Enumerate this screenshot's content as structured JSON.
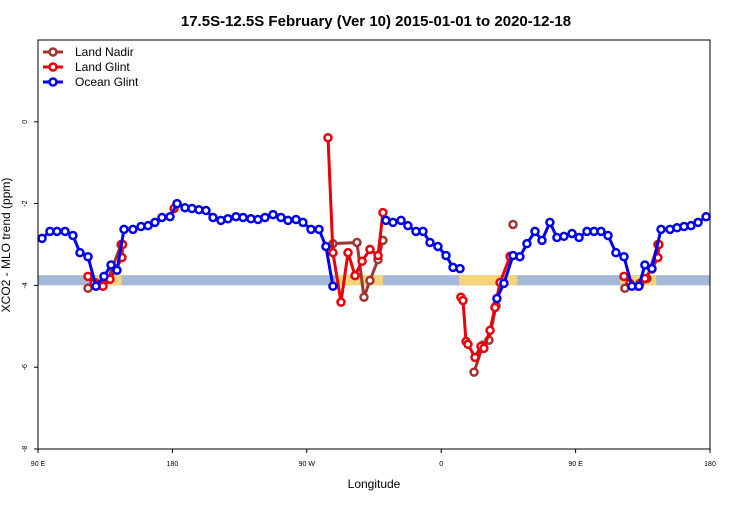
{
  "chart_data": {
    "type": "line",
    "title": "17.5S-12.5S February (Ver 10)   2015-01-01 to 2020-12-18",
    "x_label": "Longitude",
    "y_label": "XCO2 - MLO trend (ppm)",
    "xlim": [
      90,
      540
    ],
    "xticks": [
      {
        "value": 90,
        "label": "90 E"
      },
      {
        "value": 180,
        "label": "180"
      },
      {
        "value": 270,
        "label": "90 W"
      },
      {
        "value": 360,
        "label": "0"
      },
      {
        "value": 450,
        "label": "90 E"
      },
      {
        "value": 540,
        "label": "180"
      }
    ],
    "ylim": [
      -8,
      2
    ],
    "yticks": [
      0,
      -2,
      -4,
      -6,
      -8
    ],
    "legend": "top-left",
    "surface_band": {
      "ylim": [
        -4.0,
        -3.75
      ],
      "ocean_color": "#a4b8d8",
      "land_color": "#f5d37a",
      "land": [
        [
          128,
          146
        ],
        [
          289,
          321
        ],
        [
          372,
          411
        ],
        [
          480,
          504
        ]
      ]
    },
    "series": [
      {
        "name": "Land Nadir",
        "color": "#a0342f",
        "x": [
          123.5,
          128.2,
          136.9,
          145.6,
          200,
          287.5,
          303.6,
          308.3,
          312.3,
          317.7,
          321,
          350,
          382,
          388,
          392,
          396.7,
          402,
          408.1,
          440,
          483,
          493.1,
          497.8,
          505.1
        ],
        "values": [
          -4.07,
          -3.93,
          -3.85,
          -3.0,
          null,
          -2.98,
          -2.95,
          -4.29,
          -3.88,
          -3.37,
          -2.9,
          null,
          -6.12,
          -5.46,
          -5.34,
          -4.5,
          null,
          -2.51,
          null,
          -4.07,
          -3.95,
          -3.83,
          -3.0
        ]
      },
      {
        "name": "Land Glint",
        "color": "#e8000b",
        "x": [
          123.5,
          127.5,
          133.5,
          138.2,
          142.2,
          146.2,
          146.6,
          160,
          181.1,
          230,
          284.2,
          287.5,
          292.9,
          297.6,
          302.3,
          307,
          312.3,
          317.7,
          321,
          350,
          373.2,
          374.6,
          376.6,
          377.9,
          382.6,
          386.6,
          388.6,
          392.7,
          396,
          399.4,
          406.1,
          440,
          482.4,
          486.4,
          491.8,
          496.4,
          501.1,
          505.1,
          505.8
        ],
        "values": [
          -3.78,
          -3.95,
          -4.02,
          -3.85,
          -3.6,
          -3.32,
          -3.0,
          null,
          -2.12,
          null,
          -0.39,
          -3.2,
          -4.41,
          -3.2,
          -3.76,
          -3.41,
          -3.12,
          -3.27,
          -2.22,
          null,
          -4.29,
          -4.37,
          -5.37,
          -5.44,
          -5.76,
          -5.49,
          -5.54,
          -5.1,
          -4.54,
          -3.93,
          -3.29,
          null,
          -3.78,
          -3.95,
          -4.02,
          -3.83,
          -3.6,
          -3.32,
          -3.0
        ]
      },
      {
        "name": "Ocean Glint",
        "color": "#0000ee",
        "x": [
          92.7,
          98.0,
          102.7,
          108.1,
          113.4,
          118.1,
          123.5,
          128.8,
          134.2,
          138.9,
          142.9,
          147.6,
          153.6,
          159.0,
          163.7,
          168.3,
          173.0,
          178.4,
          183.1,
          188.4,
          193.1,
          197.8,
          202.5,
          207.2,
          212.5,
          217.2,
          222.6,
          227.3,
          232.6,
          237.3,
          242.0,
          247.4,
          252.7,
          257.4,
          262.8,
          267.4,
          272.8,
          278.2,
          282.8,
          287.5,
          305,
          323.0,
          327.7,
          333.1,
          337.7,
          343.1,
          347.8,
          352.5,
          357.8,
          363.2,
          367.9,
          372.6,
          385,
          397.3,
          402.0,
          408.1,
          412.7,
          417.4,
          422.8,
          427.5,
          432.8,
          437.5,
          442.2,
          447.6,
          452.3,
          457.6,
          462.3,
          467.0,
          471.7,
          477.0,
          482.4,
          487.7,
          492.4,
          496.4,
          501.1,
          507.2,
          513.2,
          517.9,
          522.6,
          527.3,
          532.0,
          537.4
        ],
        "values": [
          -2.85,
          -2.68,
          -2.68,
          -2.68,
          -2.78,
          -3.2,
          -3.3,
          -4.02,
          -3.78,
          -3.5,
          -3.63,
          -2.63,
          -2.63,
          -2.56,
          -2.54,
          -2.46,
          -2.34,
          -2.32,
          -2.0,
          -2.1,
          -2.12,
          -2.15,
          -2.17,
          -2.34,
          -2.41,
          -2.37,
          -2.32,
          -2.34,
          -2.37,
          -2.39,
          -2.34,
          -2.27,
          -2.34,
          -2.41,
          -2.39,
          -2.46,
          -2.63,
          -2.63,
          -3.05,
          -4.02,
          null,
          -2.41,
          -2.46,
          -2.41,
          -2.54,
          -2.68,
          -2.68,
          -2.95,
          -3.05,
          -3.27,
          -3.56,
          -3.59,
          null,
          -4.32,
          -3.95,
          -3.27,
          -3.3,
          -2.98,
          -2.68,
          -2.9,
          -2.46,
          -2.83,
          -2.8,
          -2.73,
          -2.83,
          -2.68,
          -2.68,
          -2.68,
          -2.78,
          -3.2,
          -3.3,
          -4.02,
          -4.02,
          -3.5,
          -3.59,
          -2.63,
          -2.63,
          -2.59,
          -2.56,
          -2.54,
          -2.46,
          -2.32
        ]
      }
    ]
  }
}
